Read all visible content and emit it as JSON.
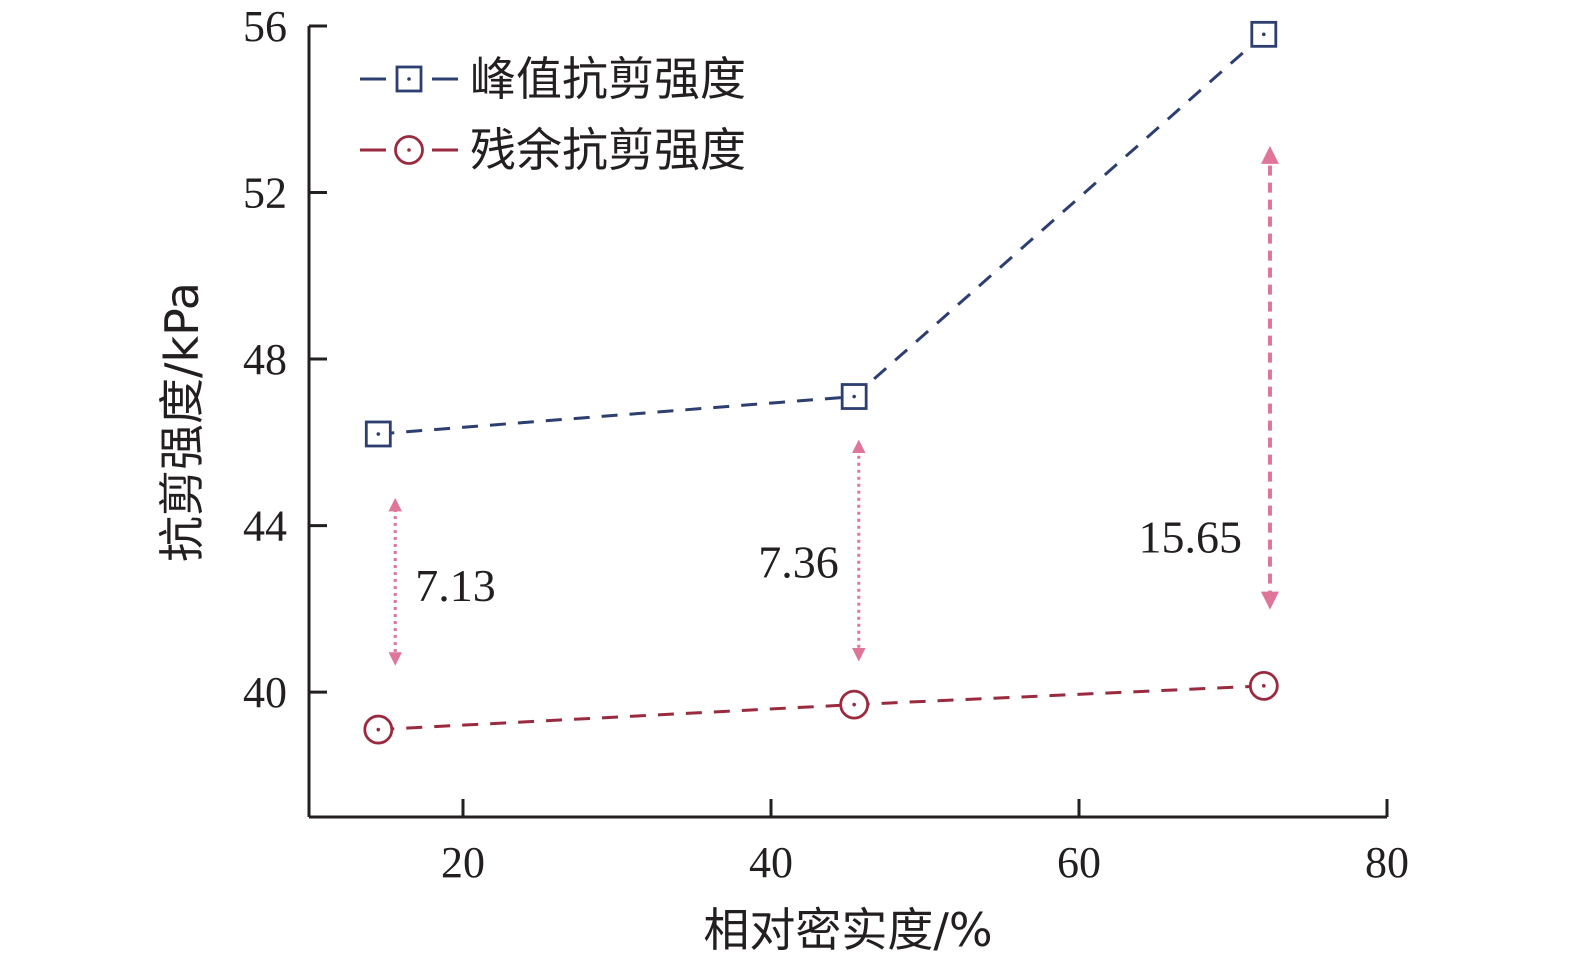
{
  "chart_data": {
    "type": "line",
    "xlabel": "相对密实度/%",
    "ylabel": "抗剪强度/kPa",
    "xlim": [
      10,
      80
    ],
    "ylim": [
      37,
      56
    ],
    "x_ticks": [
      "20",
      "40",
      "60",
      "80"
    ],
    "y_ticks": [
      "40",
      "44",
      "48",
      "52",
      "56"
    ],
    "legend_position": "top-left",
    "grid": false,
    "series": [
      {
        "name": "峰值抗剪强度",
        "marker": "square",
        "line_style": "dashed",
        "color": "#2d3e70",
        "x": [
          14.5,
          45.4,
          72
        ],
        "y": [
          46.2,
          47.1,
          55.8
        ]
      },
      {
        "name": "残余抗剪强度",
        "marker": "circle",
        "line_style": "dashed",
        "color": "#9a2a3e",
        "x": [
          14.5,
          45.4,
          72
        ],
        "y": [
          39.1,
          39.7,
          40.15
        ]
      }
    ],
    "annotations": [
      {
        "text": "7.13",
        "x": 15.6,
        "y_from": 40.7,
        "y_to": 44.6,
        "style": "dotted",
        "color": "#e0759a"
      },
      {
        "text": "7.36",
        "x": 45.7,
        "y_from": 40.8,
        "y_to": 46.0,
        "style": "dotted",
        "color": "#e0759a"
      },
      {
        "text": "15.65",
        "x": 72.4,
        "y_from": 42.1,
        "y_to": 53.0,
        "style": "dashed",
        "color": "#e0759a"
      }
    ]
  }
}
